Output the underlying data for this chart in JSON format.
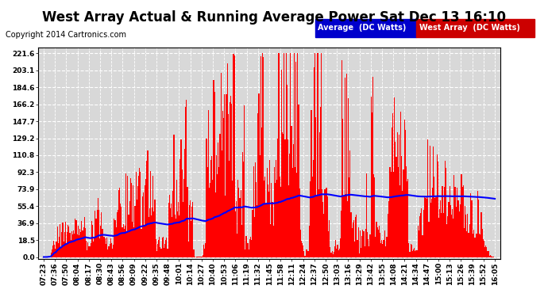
{
  "title": "West Array Actual & Running Average Power Sat Dec 13 16:10",
  "copyright": "Copyright 2014 Cartronics.com",
  "legend_labels": [
    "Average  (DC Watts)",
    "West Array  (DC Watts)"
  ],
  "bar_color": "#ff0000",
  "line_color": "#0000ff",
  "bg_color": "#ffffff",
  "plot_bg_color": "#d8d8d8",
  "grid_color": "#ffffff",
  "yticks": [
    0.0,
    18.5,
    36.9,
    55.4,
    73.9,
    92.3,
    110.8,
    129.2,
    147.7,
    166.2,
    184.6,
    203.1,
    221.6
  ],
  "ymax": 228,
  "ymin": -2,
  "time_labels": [
    "07:23",
    "07:36",
    "07:50",
    "08:04",
    "08:17",
    "08:30",
    "08:43",
    "08:56",
    "09:09",
    "09:22",
    "09:35",
    "09:48",
    "10:01",
    "10:14",
    "10:27",
    "10:40",
    "10:53",
    "11:06",
    "11:19",
    "11:32",
    "11:45",
    "11:58",
    "12:11",
    "12:24",
    "12:37",
    "12:50",
    "13:03",
    "13:16",
    "13:29",
    "13:42",
    "13:55",
    "14:08",
    "14:21",
    "14:34",
    "14:47",
    "15:00",
    "15:13",
    "15:26",
    "15:39",
    "15:52",
    "16:05"
  ],
  "title_fontsize": 12,
  "copyright_fontsize": 7,
  "legend_fontsize": 7,
  "tick_fontsize": 6.5
}
